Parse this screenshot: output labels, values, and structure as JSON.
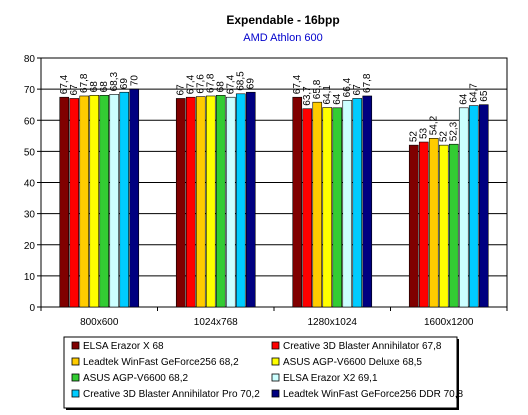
{
  "chart_data": {
    "type": "bar",
    "title": "Expendable - 16bpp",
    "subtitle": "AMD Athlon 600",
    "xlabel": "",
    "ylabel": "",
    "ylim": [
      0,
      80
    ],
    "yticks": [
      0,
      10,
      20,
      30,
      40,
      50,
      60,
      70,
      80
    ],
    "grid": true,
    "legend_position": "bottom",
    "categories": [
      "800x600",
      "1024x768",
      "1280x1024",
      "1600x1200"
    ],
    "series": [
      {
        "name": "ELSA Erazor X 68",
        "color": "#800000",
        "values": [
          67.4,
          67,
          67.4,
          52
        ],
        "labels": [
          "67,4",
          "67",
          "67,4",
          "52"
        ]
      },
      {
        "name": "Creative 3D Blaster Annihilator 67,8",
        "color": "#ff0000",
        "values": [
          67,
          67.4,
          63.7,
          53
        ],
        "labels": [
          "67",
          "67,4",
          "63,7",
          "53"
        ]
      },
      {
        "name": "Leadtek WinFast GeForce256 68,2",
        "color": "#ffcc00",
        "values": [
          67.8,
          67.6,
          65.8,
          54.2
        ],
        "labels": [
          "67,8",
          "67,6",
          "65,8",
          "54,2"
        ]
      },
      {
        "name": "ASUS AGP-V6600 Deluxe 68,5",
        "color": "#ffff00",
        "values": [
          68,
          67.8,
          64.1,
          52
        ],
        "labels": [
          "68",
          "67,8",
          "64,1",
          "52"
        ]
      },
      {
        "name": "ASUS AGP-V6600 68,2",
        "color": "#33cc33",
        "values": [
          68,
          68,
          64,
          52.3
        ],
        "labels": [
          "68",
          "68",
          "64",
          "52,3"
        ]
      },
      {
        "name": "ELSA Erazor X2 69,1",
        "color": "#ccffff",
        "values": [
          68.3,
          67.4,
          66.4,
          64
        ],
        "labels": [
          "68,3",
          "67,4",
          "66,4",
          "64"
        ]
      },
      {
        "name": "Creative 3D Blaster Annihilator Pro 70,2",
        "color": "#00ccff",
        "values": [
          69,
          68.5,
          67,
          64.7
        ],
        "labels": [
          "69",
          "68,5",
          "67",
          "64,7"
        ]
      },
      {
        "name": "Leadtek WinFast GeForce256 DDR 70,8",
        "color": "#000080",
        "values": [
          70,
          69,
          67.8,
          65
        ],
        "labels": [
          "70",
          "69",
          "67,8",
          "65"
        ]
      }
    ]
  }
}
